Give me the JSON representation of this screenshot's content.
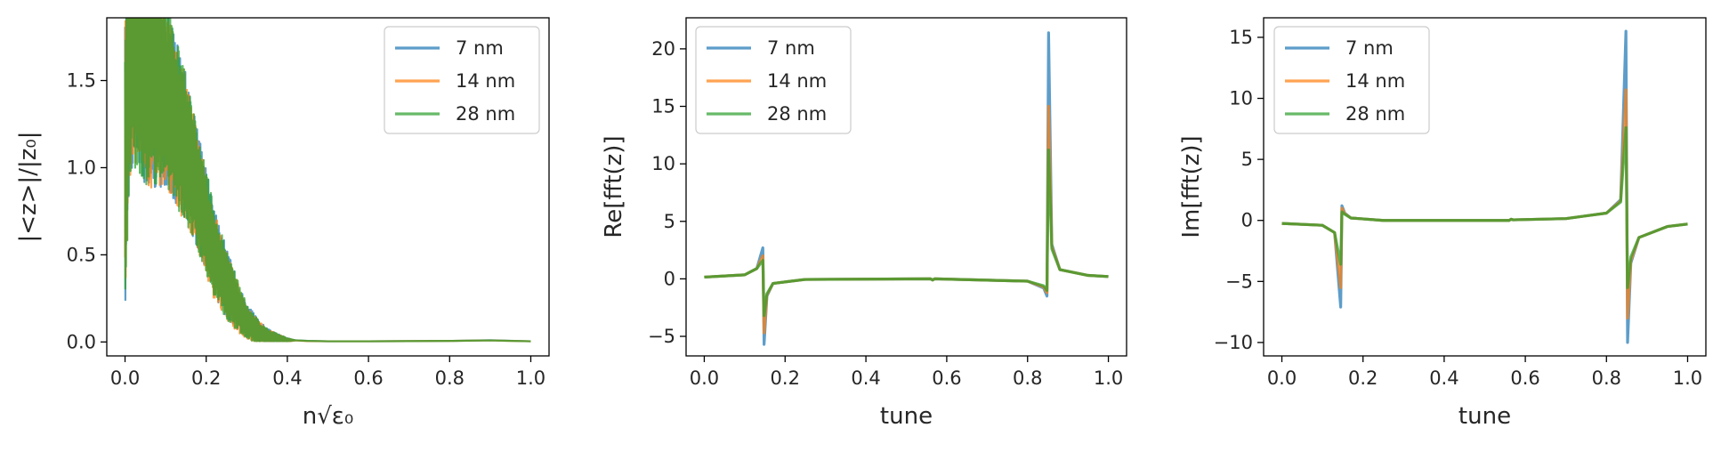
{
  "figure": {
    "background": "#ffffff",
    "series_colors": [
      "#1f77b4",
      "#ff7f0e",
      "#2ca02c"
    ]
  },
  "chart_data": [
    {
      "type": "line",
      "id": "panel-1",
      "xlabel": "n√ε₀",
      "ylabel": "|<z>|/|z₀|",
      "xlim": [
        0.0,
        1.0
      ],
      "ylim": [
        -0.08,
        1.86
      ],
      "xticks": [
        0.0,
        0.2,
        0.4,
        0.6,
        0.8,
        1.0
      ],
      "xtick_labels": [
        "0.0",
        "0.2",
        "0.4",
        "0.6",
        "0.8",
        "1.0"
      ],
      "yticks": [
        0.0,
        0.5,
        1.0,
        1.5
      ],
      "ytick_labels": [
        "0.0",
        "0.5",
        "1.0",
        "1.5"
      ],
      "legend": "top-right",
      "grid": false,
      "series": [
        {
          "name": "7 nm",
          "color": "#1f77b4",
          "points": [
            [
              0.0,
              1.0
            ],
            [
              0.01,
              1.72
            ],
            [
              0.02,
              1.78
            ],
            [
              0.03,
              1.75
            ],
            [
              0.05,
              1.62
            ],
            [
              0.08,
              1.5
            ],
            [
              0.1,
              1.42
            ],
            [
              0.12,
              1.3
            ],
            [
              0.15,
              1.12
            ],
            [
              0.18,
              0.88
            ],
            [
              0.2,
              0.7
            ],
            [
              0.22,
              0.52
            ],
            [
              0.25,
              0.34
            ],
            [
              0.28,
              0.2
            ],
            [
              0.3,
              0.12
            ],
            [
              0.33,
              0.06
            ],
            [
              0.36,
              0.03
            ],
            [
              0.4,
              0.012
            ],
            [
              0.45,
              0.006
            ],
            [
              0.5,
              0.004
            ],
            [
              0.6,
              0.004
            ],
            [
              0.7,
              0.005
            ],
            [
              0.8,
              0.006
            ],
            [
              0.9,
              0.01
            ],
            [
              0.95,
              0.007
            ],
            [
              1.0,
              0.004
            ]
          ]
        },
        {
          "name": "14 nm",
          "color": "#ff7f0e",
          "points": [
            [
              0.0,
              1.0
            ],
            [
              0.01,
              1.7
            ],
            [
              0.02,
              1.76
            ],
            [
              0.03,
              1.74
            ],
            [
              0.05,
              1.6
            ],
            [
              0.08,
              1.48
            ],
            [
              0.1,
              1.4
            ],
            [
              0.12,
              1.28
            ],
            [
              0.15,
              1.1
            ],
            [
              0.18,
              0.86
            ],
            [
              0.2,
              0.68
            ],
            [
              0.22,
              0.5
            ],
            [
              0.25,
              0.32
            ],
            [
              0.28,
              0.19
            ],
            [
              0.3,
              0.11
            ],
            [
              0.33,
              0.055
            ],
            [
              0.36,
              0.028
            ],
            [
              0.4,
              0.011
            ],
            [
              0.45,
              0.005
            ],
            [
              0.5,
              0.004
            ],
            [
              0.6,
              0.004
            ],
            [
              0.7,
              0.005
            ],
            [
              0.8,
              0.006
            ],
            [
              0.9,
              0.009
            ],
            [
              0.95,
              0.006
            ],
            [
              1.0,
              0.004
            ]
          ]
        },
        {
          "name": "28 nm",
          "color": "#2ca02c",
          "points": [
            [
              0.0,
              1.0
            ],
            [
              0.01,
              1.71
            ],
            [
              0.02,
              1.77
            ],
            [
              0.03,
              1.74
            ],
            [
              0.05,
              1.61
            ],
            [
              0.08,
              1.49
            ],
            [
              0.1,
              1.41
            ],
            [
              0.12,
              1.29
            ],
            [
              0.15,
              1.11
            ],
            [
              0.18,
              0.87
            ],
            [
              0.2,
              0.69
            ],
            [
              0.22,
              0.51
            ],
            [
              0.25,
              0.33
            ],
            [
              0.28,
              0.2
            ],
            [
              0.3,
              0.115
            ],
            [
              0.33,
              0.058
            ],
            [
              0.36,
              0.029
            ],
            [
              0.4,
              0.012
            ],
            [
              0.45,
              0.006
            ],
            [
              0.5,
              0.004
            ],
            [
              0.6,
              0.004
            ],
            [
              0.7,
              0.005
            ],
            [
              0.8,
              0.006
            ],
            [
              0.9,
              0.009
            ],
            [
              0.95,
              0.006
            ],
            [
              1.0,
              0.004
            ]
          ]
        }
      ],
      "oscillation": {
        "x_range": [
          0.0,
          0.42
        ],
        "amplitude_envelope": [
          [
            0.0,
            0.85
          ],
          [
            0.02,
            0.8
          ],
          [
            0.05,
            0.72
          ],
          [
            0.1,
            0.55
          ],
          [
            0.15,
            0.42
          ],
          [
            0.2,
            0.3
          ],
          [
            0.25,
            0.2
          ],
          [
            0.3,
            0.1
          ],
          [
            0.35,
            0.04
          ],
          [
            0.4,
            0.01
          ],
          [
            0.42,
            0.0
          ]
        ]
      }
    },
    {
      "type": "line",
      "id": "panel-2",
      "xlabel": "tune",
      "ylabel": "Re[fft(z)]",
      "xlim": [
        0.0,
        1.0
      ],
      "ylim": [
        -6.7,
        22.7
      ],
      "xticks": [
        0.0,
        0.2,
        0.4,
        0.6,
        0.8,
        1.0
      ],
      "xtick_labels": [
        "0.0",
        "0.2",
        "0.4",
        "0.6",
        "0.8",
        "1.0"
      ],
      "yticks": [
        -5,
        0,
        5,
        10,
        15,
        20
      ],
      "ytick_labels": [
        "−5",
        "0",
        "5",
        "10",
        "15",
        "20"
      ],
      "legend": "top-left",
      "grid": false,
      "series": [
        {
          "name": "7 nm",
          "color": "#1f77b4",
          "points": [
            [
              0.0,
              0.15
            ],
            [
              0.1,
              0.35
            ],
            [
              0.13,
              0.9
            ],
            [
              0.145,
              2.7
            ],
            [
              0.148,
              -5.7
            ],
            [
              0.155,
              -1.5
            ],
            [
              0.17,
              -0.4
            ],
            [
              0.25,
              -0.05
            ],
            [
              0.56,
              0.0
            ],
            [
              0.565,
              -0.1
            ],
            [
              0.57,
              0.0
            ],
            [
              0.8,
              -0.2
            ],
            [
              0.84,
              -0.8
            ],
            [
              0.848,
              -1.5
            ],
            [
              0.852,
              21.4
            ],
            [
              0.86,
              3.0
            ],
            [
              0.88,
              0.8
            ],
            [
              0.95,
              0.3
            ],
            [
              1.0,
              0.2
            ]
          ]
        },
        {
          "name": "14 nm",
          "color": "#ff7f0e",
          "points": [
            [
              0.0,
              0.15
            ],
            [
              0.1,
              0.35
            ],
            [
              0.13,
              0.9
            ],
            [
              0.145,
              2.0
            ],
            [
              0.148,
              -4.7
            ],
            [
              0.155,
              -1.4
            ],
            [
              0.17,
              -0.4
            ],
            [
              0.25,
              -0.05
            ],
            [
              0.56,
              0.0
            ],
            [
              0.565,
              -0.1
            ],
            [
              0.57,
              0.0
            ],
            [
              0.8,
              -0.2
            ],
            [
              0.84,
              -0.7
            ],
            [
              0.848,
              -1.2
            ],
            [
              0.852,
              15.0
            ],
            [
              0.86,
              2.8
            ],
            [
              0.88,
              0.8
            ],
            [
              0.95,
              0.3
            ],
            [
              1.0,
              0.2
            ]
          ]
        },
        {
          "name": "28 nm",
          "color": "#2ca02c",
          "points": [
            [
              0.0,
              0.15
            ],
            [
              0.1,
              0.35
            ],
            [
              0.13,
              0.9
            ],
            [
              0.145,
              1.6
            ],
            [
              0.148,
              -3.2
            ],
            [
              0.155,
              -1.3
            ],
            [
              0.17,
              -0.4
            ],
            [
              0.25,
              -0.05
            ],
            [
              0.56,
              0.0
            ],
            [
              0.565,
              -0.1
            ],
            [
              0.57,
              0.0
            ],
            [
              0.8,
              -0.2
            ],
            [
              0.84,
              -0.6
            ],
            [
              0.848,
              -1.0
            ],
            [
              0.852,
              11.2
            ],
            [
              0.86,
              2.6
            ],
            [
              0.88,
              0.8
            ],
            [
              0.95,
              0.3
            ],
            [
              1.0,
              0.2
            ]
          ]
        }
      ]
    },
    {
      "type": "line",
      "id": "panel-3",
      "xlabel": "tune",
      "ylabel": "Im[fft(z)]",
      "xlim": [
        0.0,
        1.0
      ],
      "ylim": [
        -11.1,
        16.6
      ],
      "xticks": [
        0.0,
        0.2,
        0.4,
        0.6,
        0.8,
        1.0
      ],
      "xtick_labels": [
        "0.0",
        "0.2",
        "0.4",
        "0.6",
        "0.8",
        "1.0"
      ],
      "yticks": [
        -10,
        -5,
        0,
        5,
        10,
        15
      ],
      "ytick_labels": [
        "−10",
        "−5",
        "0",
        "5",
        "10",
        "15"
      ],
      "legend": "top-left",
      "grid": false,
      "series": [
        {
          "name": "7 nm",
          "color": "#1f77b4",
          "points": [
            [
              0.0,
              -0.25
            ],
            [
              0.1,
              -0.4
            ],
            [
              0.13,
              -1.0
            ],
            [
              0.145,
              -7.1
            ],
            [
              0.148,
              1.2
            ],
            [
              0.155,
              0.6
            ],
            [
              0.17,
              0.2
            ],
            [
              0.25,
              0.0
            ],
            [
              0.56,
              0.0
            ],
            [
              0.565,
              0.1
            ],
            [
              0.57,
              0.05
            ],
            [
              0.7,
              0.15
            ],
            [
              0.8,
              0.6
            ],
            [
              0.835,
              1.7
            ],
            [
              0.848,
              15.5
            ],
            [
              0.852,
              -10.0
            ],
            [
              0.86,
              -3.5
            ],
            [
              0.88,
              -1.4
            ],
            [
              0.95,
              -0.5
            ],
            [
              1.0,
              -0.3
            ]
          ]
        },
        {
          "name": "14 nm",
          "color": "#ff7f0e",
          "points": [
            [
              0.0,
              -0.25
            ],
            [
              0.1,
              -0.4
            ],
            [
              0.13,
              -1.0
            ],
            [
              0.145,
              -5.5
            ],
            [
              0.148,
              1.0
            ],
            [
              0.155,
              0.55
            ],
            [
              0.17,
              0.2
            ],
            [
              0.25,
              0.0
            ],
            [
              0.56,
              0.0
            ],
            [
              0.565,
              0.1
            ],
            [
              0.57,
              0.05
            ],
            [
              0.7,
              0.15
            ],
            [
              0.8,
              0.6
            ],
            [
              0.835,
              1.6
            ],
            [
              0.848,
              10.7
            ],
            [
              0.852,
              -8.0
            ],
            [
              0.86,
              -3.3
            ],
            [
              0.88,
              -1.4
            ],
            [
              0.95,
              -0.5
            ],
            [
              1.0,
              -0.3
            ]
          ]
        },
        {
          "name": "28 nm",
          "color": "#2ca02c",
          "points": [
            [
              0.0,
              -0.25
            ],
            [
              0.1,
              -0.4
            ],
            [
              0.13,
              -1.0
            ],
            [
              0.145,
              -3.6
            ],
            [
              0.148,
              0.7
            ],
            [
              0.155,
              0.5
            ],
            [
              0.17,
              0.2
            ],
            [
              0.25,
              0.0
            ],
            [
              0.56,
              0.0
            ],
            [
              0.565,
              0.1
            ],
            [
              0.57,
              0.05
            ],
            [
              0.7,
              0.15
            ],
            [
              0.8,
              0.6
            ],
            [
              0.835,
              1.5
            ],
            [
              0.848,
              7.6
            ],
            [
              0.852,
              -5.5
            ],
            [
              0.86,
              -3.0
            ],
            [
              0.88,
              -1.4
            ],
            [
              0.95,
              -0.5
            ],
            [
              1.0,
              -0.3
            ]
          ]
        }
      ]
    }
  ]
}
